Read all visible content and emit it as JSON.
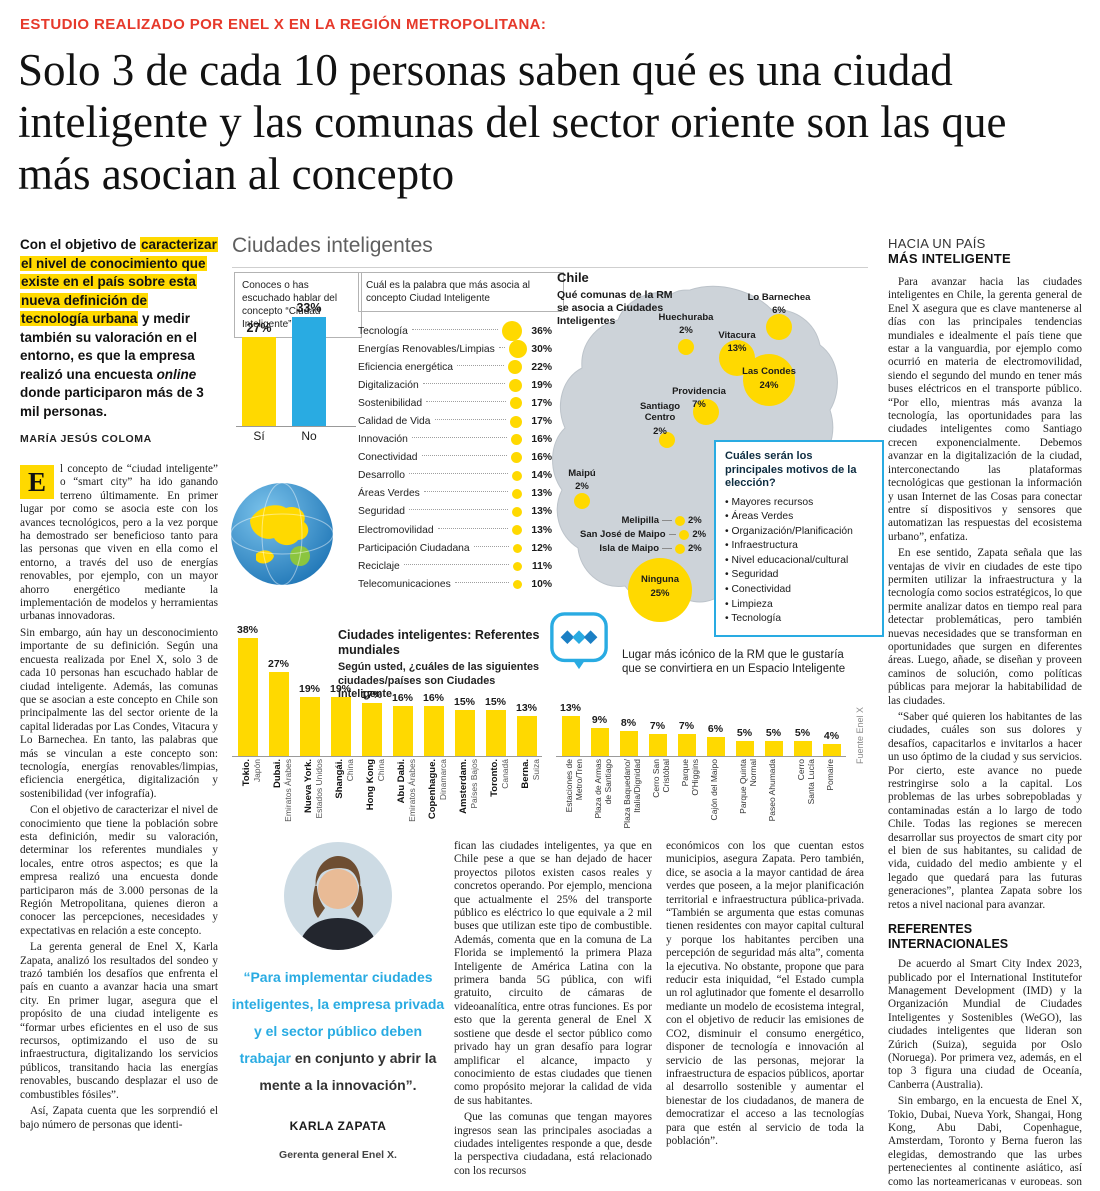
{
  "colors": {
    "yellow": "#FFD900",
    "blue": "#29ABE2",
    "red": "#E6392B",
    "map_gray": "#CDD3D9"
  },
  "kicker": "ESTUDIO REALIZADO POR ENEL X EN LA REGIÓN METROPOLITANA:",
  "headline": "Solo 3 de cada 10 personas saben qué es una ciudad inteligente y las comunas del sector oriente son las que más asocian al concepto",
  "lede": {
    "pre": "Con el objetivo de ",
    "highlight": "caracterizar el nivel de conocimiento que existe en el país sobre esta nueva definición de tecnología urbana",
    "mid": " y medir también su valoración en el entorno, es que la empresa realizó una encuesta ",
    "online": "online",
    "post": " donde participaron más de 3 mil personas."
  },
  "byline": "MARÍA JESÚS COLOMA",
  "article": {
    "dropcap": "E",
    "first_paragraph": "l concepto de “ciudad inteligente” o “smart city” ha ido ganando terreno últimamente. En primer lugar por como se asocia este con los avances tecnológicos, pero a la vez porque ha demostrado ser beneficioso tanto para las personas que viven en ella como el entorno, a través del uso de energías renovables, por ejemplo, con un mayor ahorro energético mediante la implementación de modelos y herramientas urbanas innovadoras.",
    "paragraphs": [
      "Sin embargo, aún hay un desconocimiento importante de su definición. Según una encuesta realizada por Enel X, solo 3 de cada 10 personas han escuchado hablar de ciudad inteligente. Además, las comunas que se asocian a este concepto en Chile son principalmente las del sector oriente de la capital lideradas por Las Condes, Vitacura y Lo Barnechea. En tanto, las palabras que más se vinculan a este concepto son: tecnología, energías renovables/limpias, eficiencia energética, digitalización y sostenibilidad (ver infografía).",
      "Con el objetivo de caracterizar el nivel de conocimiento que tiene la población sobre esta definición, medir su valoración, determinar los referentes mundiales y locales, entre otros aspectos; es que la empresa realizó una encuesta donde participaron más de 3.000 personas de la Región Metropolitana, quienes dieron a conocer las percepciones, necesidades y expectativas en relación a este concepto.",
      "La gerenta general de Enel X, Karla Zapata, analizó los resultados del sondeo y trazó también los desafíos que enfrenta el país en cuanto a avanzar hacia una smart city. En primer lugar, asegura que el propósito de una ciudad inteligente es “formar urbes eficientes en el uso de sus recursos, optimizando el uso de su infraestructura, digitalizando los servicios públicos, transitando hacia las energías renovables, buscando desplazar el uso de combustibles fósiles”.",
      "Así, Zapata cuenta que les sorprendió el bajo número de personas que identi-"
    ]
  },
  "infographic": {
    "title": "Ciudades inteligentes",
    "awareness": {
      "question": "Conoces o has escuchado hablar del concepto “Ciudad Inteligente”",
      "bars": [
        {
          "label": "Sí",
          "value": 27,
          "color": "#FFD900"
        },
        {
          "label": "No",
          "value": 33,
          "color": "#29ABE2"
        }
      ]
    },
    "word_association": {
      "question": "Cuál es la palabra que más asocia al concepto Ciudad Inteligente",
      "items": [
        {
          "label": "Tecnología",
          "value": 36
        },
        {
          "label": "Energías Renovables/Limpias",
          "value": 30
        },
        {
          "label": "Eficiencia energética",
          "value": 22
        },
        {
          "label": "Digitalización",
          "value": 19
        },
        {
          "label": "Sostenibilidad",
          "value": 17
        },
        {
          "label": "Calidad de Vida",
          "value": 17
        },
        {
          "label": "Innovación",
          "value": 16
        },
        {
          "label": "Conectividad",
          "value": 16
        },
        {
          "label": "Desarrollo",
          "value": 14
        },
        {
          "label": "Áreas Verdes",
          "value": 13
        },
        {
          "label": "Seguridad",
          "value": 13
        },
        {
          "label": "Electromovilidad",
          "value": 13
        },
        {
          "label": "Participación Ciudadana",
          "value": 12
        },
        {
          "label": "Reciclaje",
          "value": 11
        },
        {
          "label": "Telecomunicaciones",
          "value": 10
        }
      ]
    },
    "map": {
      "country": "Chile",
      "title": "Qué comunas de la RM se asocia a Ciudades Inteligentes",
      "bubbles": [
        {
          "name": "Lo Barnechea",
          "value": 6
        },
        {
          "name": "Huechuraba",
          "value": 2
        },
        {
          "name": "Vitacura",
          "value": 13
        },
        {
          "name": "Las Condes",
          "value": 24
        },
        {
          "name": "Providencia",
          "value": 7
        },
        {
          "name": "Santiago Centro",
          "value": 2
        },
        {
          "name": "Maipú",
          "value": 2
        },
        {
          "name": "Melipilla",
          "value": 2
        },
        {
          "name": "San José de Maipo",
          "value": 2
        },
        {
          "name": "Isla de Maipo",
          "value": 2
        },
        {
          "name": "Ninguna",
          "value": 25
        }
      ]
    },
    "motivos": {
      "title": "Cuáles serán los principales motivos de la elección?",
      "items": [
        "Mayores recursos",
        "Áreas Verdes",
        "Organización/Planificación",
        "Infraestructura",
        "Nivel educacional/cultural",
        "Seguridad",
        "Conectividad",
        "Limpieza",
        "Tecnología"
      ]
    },
    "referentes": {
      "title": "Ciudades inteligentes: Referentes mundiales",
      "subtitle": "Según usted, ¿cuáles de las siguientes ciudades/países son Ciudades Inteligente",
      "bars": [
        {
          "city": "Tokio.",
          "country": "Japón",
          "value": 38
        },
        {
          "city": "Dubai.",
          "country": "Emiratos Árabes",
          "value": 27
        },
        {
          "city": "Nueva York.",
          "country": "Estados Unidos",
          "value": 19
        },
        {
          "city": "Shangái.",
          "country": "China",
          "value": 19
        },
        {
          "city": "Hong Kong",
          "country": "China",
          "value": 17
        },
        {
          "city": "Abu Dabi.",
          "country": "Emiratos Árabes",
          "value": 16
        },
        {
          "city": "Copenhague.",
          "country": "Dinamarca",
          "value": 16
        },
        {
          "city": "Amsterdam.",
          "country": "Países Bajos",
          "value": 15
        },
        {
          "city": "Toronto.",
          "country": "Canadá",
          "value": 15
        },
        {
          "city": "Berna.",
          "country": "Suiza",
          "value": 13
        }
      ]
    },
    "lugares": {
      "title": "Lugar más icónico de la RM que le gustaría que se convirtiera en un Espacio Inteligente",
      "bars": [
        {
          "label": "Estaciones de Metro/Tren",
          "value": 13
        },
        {
          "label": "Plaza de Armas de Santiago",
          "value": 9
        },
        {
          "label": "Plaza Baquedano/Italia/Dignidad",
          "value": 8
        },
        {
          "label": "Cerro San Cristóbal",
          "value": 7
        },
        {
          "label": "Parque O'Higgins",
          "value": 7
        },
        {
          "label": "Cajón del Maipo",
          "value": 6
        },
        {
          "label": "Parque Quinta Normal",
          "value": 5
        },
        {
          "label": "Paseo Ahumada",
          "value": 5
        },
        {
          "label": "Cerro Santa Lucía",
          "value": 5
        },
        {
          "label": "Pomaire",
          "value": 4
        }
      ]
    },
    "source": "Fuente Enel X"
  },
  "quote": {
    "blue": "“Para implementar ciudades inteligentes, la empresa privada y el sector público deben trabajar",
    "dark": " en conjunto y abrir la mente a la innovación”.",
    "name": "KARLA ZAPATA",
    "role": "Gerenta general Enel X."
  },
  "column_a": {
    "paragraphs": [
      "fican las ciudades inteligentes, ya que en Chile pese a que se han dejado de hacer proyectos pilotos existen casos reales y concretos operando. Por ejemplo, menciona que actualmente el 25% del transporte público es eléctrico lo que equivale a 2 mil buses que utilizan este tipo de combustible. Además, comenta que en la comuna de La Florida se implementó la primera Plaza Inteligente de América Latina con la primera banda 5G pública, con wifi gratuito, circuito de cámaras de videoanalítica, entre otras funciones. Es por esto que la gerenta general de Enel X sostiene que desde el sector público como privado hay un gran desafío para lograr amplificar el alcance, impacto y conocimiento de estas ciudades que tienen como propósito mejorar la calidad de vida de sus habitantes.",
      "Que las comunas que tengan mayores ingresos sean las principales asociadas a ciudades inteligentes responde a que, desde la perspectiva ciudadana, está relacionado con los recursos"
    ]
  },
  "column_b": {
    "paragraphs": [
      "económicos con los que cuentan estos municipios, asegura Zapata. Pero también, dice, se asocia a la mayor cantidad de área verdes que poseen, a la mejor planificación territorial e infraestructura pública-privada. “También se argumenta que estas comunas tienen residentes con mayor capital cultural y porque los habitantes perciben una percepción de seguridad más alta”, comenta la ejecutiva. No obstante, propone que para reducir esta iniquidad, “el Estado cumpla un rol aglutinador que fomente el desarrollo mediante un modelo de ecosistema integral, con el objetivo de reducir las emisiones de CO2, disminuir el consumo energético, disponer de tecnología e innovación al servicio de las personas, mejorar la infraestructura de espacios públicos, aportar al desarrollo sostenible y aumentar el bienestar de los ciudadanos, de manera de democratizar el acceso a las tecnologías para que estén al servicio de toda la población”."
    ]
  },
  "right_column": {
    "heading_light": "HACIA UN PAÍS",
    "heading_bold": "MÁS INTELIGENTE",
    "paragraphs": [
      "Para avanzar hacia las ciudades inteligentes en Chile, la gerenta general de Enel X asegura que es clave mantenerse al días con las principales tendencias mundiales e idealmente el país tiene que estar a la vanguardia, por ejemplo como ocurrió en materia de electromovilidad, siendo el segundo del mundo en tener más buses eléctricos en el transporte público. “Por ello, mientras más avanza la tecnología, las oportunidades para las ciudades inteligentes como Santiago crecen exponencialmente. Debemos avanzar en la digitalización de la ciudad, interconectando las plataformas tecnológicas que gestionan la información y usan Internet de las Cosas para conectar entre sí dispositivos y sensores que automatizan las respuestas del ecosistema urbano”, enfatiza.",
      "En ese sentido, Zapata señala que las ventajas de vivir en ciudades de este tipo permiten utilizar la infraestructura y la tecnología como socios estratégicos, lo que permite analizar datos en tiempo real para detectar problemáticas, pero también nuevas necesidades que se transforman en oportunidades que surgen en diferentes áreas. Luego, añade, se diseñan y proveen caminos de solución, como políticas públicas para mejorar la habitabilidad de las ciudades.",
      "“Saber qué quieren los habitantes de las ciudades, cuáles son sus dolores y desafíos, capacitarlos e invitarlos a hacer un uso óptimo de la ciudad y sus servicios. Por cierto, este avance no puede restringirse solo a la capital. Los problemas de las urbes sobrepobladas y contaminadas están a lo largo de todo Chile. Todas las regiones se merecen desarrollar sus proyectos de smart city por el bien de sus habitantes, su calidad de vida, cuidado del medio ambiente y el legado que quedará para las futuras generaciones”, plantea Zapata sobre los retos a nivel nacional para avanzar."
    ],
    "heading2": "REFERENTES INTERNACIONALES",
    "paragraphs2": [
      "De acuerdo al Smart City Index 2023, publicado por el International Institutefor Management Development (IMD) y la Organización Mundial de Ciudades Inteligentes y Sostenibles (WeGO), las ciudades inteligentes que lideran son Zúrich (Suiza), seguida por Oslo (Noruega). Por primera vez, además, en el top 3 figura una ciudad de Oceanía, Canberra (Australia).",
      "Sin embargo, en la encuesta de Enel X, Tokio, Dubai, Nueva York, Shangai, Hong Kong, Abu Dabi, Copenhague, Amsterdam, Toronto y Berna fueron las elegidas, demostrando que las urbes pertenecientes al continente asiático, así como las norteamericanas y europeas, son mencionadas en su mayoría por los altos niveles socioeconómicos."
    ]
  }
}
